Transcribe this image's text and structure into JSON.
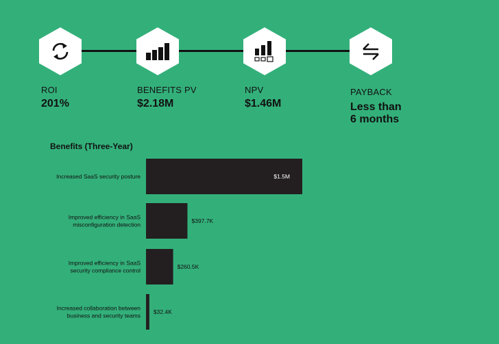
{
  "metrics": [
    {
      "label": "ROI",
      "value": "201%",
      "icon": "refresh-icon"
    },
    {
      "label": "BENEFITS PV",
      "value": "$2.18M",
      "icon": "bar-chart-icon"
    },
    {
      "label": "NPV",
      "value": "$1.46M",
      "icon": "bar-chart-units-icon"
    },
    {
      "label": "PAYBACK",
      "value_line1": "Less than",
      "value_line2": "6 months",
      "icon": "swap-arrows-icon"
    }
  ],
  "chart_data": {
    "type": "bar",
    "orientation": "horizontal",
    "title": "Benefits (Three-Year)",
    "categories": [
      [
        "Increased SaaS security posture"
      ],
      [
        "Improved efficiency in SaaS",
        "misconfiguration detection"
      ],
      [
        "Improved efficiency in SaaS",
        "security compliance control"
      ],
      [
        "Increased collaboration between",
        "business and security teams"
      ]
    ],
    "values": [
      1500000,
      397700,
      260500,
      32400
    ],
    "value_labels": [
      "$1.5M",
      "$397.7K",
      "$260.5K",
      "$32.4K"
    ],
    "bar_color": "#231f20",
    "xlabel": "",
    "ylabel": ""
  },
  "colors": {
    "background": "#33b07a",
    "bar": "#231f20",
    "hex": "#ffffff",
    "text": "#111111"
  }
}
